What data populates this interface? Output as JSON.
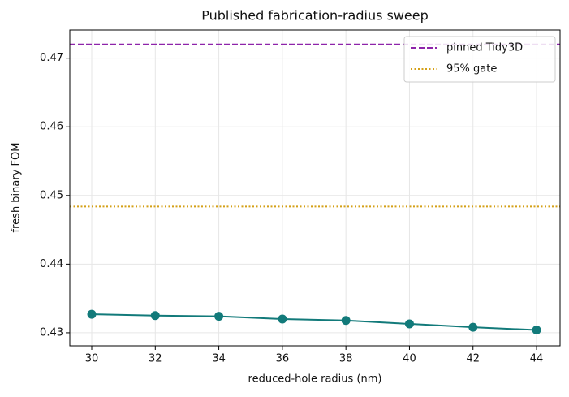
{
  "chart_data": {
    "type": "line",
    "title": "Published fabrication-radius sweep",
    "x_label": "reduced-hole radius (nm)",
    "y_label": "fresh binary FOM",
    "x": [
      30,
      32,
      34,
      36,
      38,
      40,
      42,
      44
    ],
    "series": [
      {
        "color": "#127a7a",
        "values": [
          0.4327,
          0.4325,
          0.4324,
          0.432,
          0.4318,
          0.4313,
          0.4308,
          0.4304
        ]
      }
    ],
    "reference_lines": [
      {
        "name": "pinned Tidy3D",
        "value": 0.472,
        "color": "#8e24aa",
        "style": "dashed"
      },
      {
        "name": "95% gate",
        "value": 0.4484,
        "color": "#d4a017",
        "style": "dotted"
      }
    ],
    "xlim": [
      29.31,
      44.74
    ],
    "ylim": [
      0.4281,
      0.4741
    ],
    "xticks": [
      30,
      32,
      34,
      36,
      38,
      40,
      42,
      44
    ],
    "yticks": [
      0.43,
      0.44,
      0.45,
      0.46,
      0.47
    ],
    "grid": true,
    "legend": "upper right"
  }
}
